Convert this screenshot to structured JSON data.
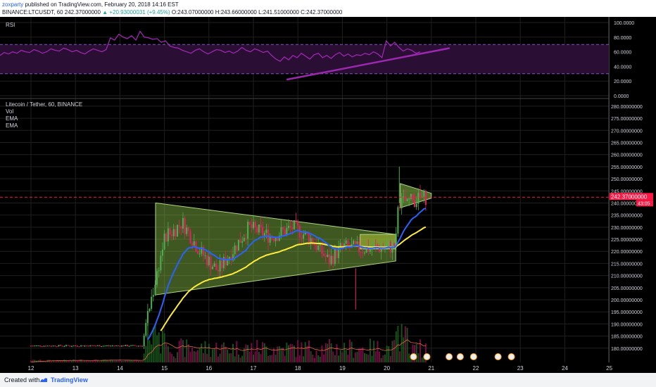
{
  "header": {
    "author": "zoxparty",
    "published_text": "published on TradingView.com, February 20, 2018 14:16 EST",
    "symbol": "BINANCE:LTCUSDT, 60",
    "last": "242.37000000",
    "change": "▲ +20.93000031 (+9.45%)",
    "ohlc": "O:243.07000000 H:243.66000000 L:241.51000000 C:242.37000000"
  },
  "footer": {
    "created_with": "Created with",
    "brand": "TradingView"
  },
  "colors": {
    "background": "#000000",
    "grid": "#1f1f1f",
    "rsi": "#9c27b0",
    "rsi_band": "#2a0e33",
    "ema_fast": "#2962ff",
    "ema_slow": "#ffeb3b",
    "up": "#4caf50",
    "down": "#e91e63",
    "triangle_fill": "#8bc34a",
    "price_line": "#ff1744"
  },
  "chart_data": [
    {
      "type": "line",
      "title": "RSI",
      "ylim": [
        0,
        100
      ],
      "y_ticks": [
        "100.0000",
        "80.0000",
        "60.0000",
        "40.0000",
        "20.0000",
        "0.0000"
      ],
      "bands": [
        30,
        70
      ],
      "series": [
        {
          "values": [
            55,
            59,
            57,
            60,
            58,
            62,
            60,
            59,
            63,
            61,
            58,
            60,
            64,
            62,
            61,
            65,
            63,
            60,
            62,
            59,
            57,
            61,
            64,
            62,
            60,
            63,
            79,
            76,
            84,
            80,
            78,
            82,
            76,
            88,
            80,
            79,
            77,
            78,
            73,
            75,
            68,
            66,
            65,
            62,
            60,
            58,
            62,
            64,
            60,
            57,
            60,
            63,
            62,
            59,
            61,
            58,
            61,
            66,
            62,
            60,
            64,
            62,
            59,
            61,
            55,
            50,
            47,
            53,
            49,
            55,
            52,
            58,
            54,
            50,
            56,
            58,
            52,
            55,
            51,
            56,
            59,
            54,
            57,
            53,
            56,
            55,
            58,
            56,
            60,
            57,
            52,
            75,
            68,
            73,
            66,
            61,
            64,
            62,
            58,
            60
          ]
        }
      ],
      "annotations": [
        {
          "type": "trendline",
          "from": [
            "2018-02-18",
            22
          ],
          "to": [
            "2018-02-21",
            65
          ]
        }
      ]
    },
    {
      "type": "candlestick",
      "title": "Litecoin / Tether, 60, BINANCE",
      "legend": [
        "Vol",
        "EMA",
        "EMA"
      ],
      "ylim": [
        175,
        282
      ],
      "y_ticks": [
        "280.00000000",
        "275.00000000",
        "270.00000000",
        "265.00000000",
        "260.00000000",
        "255.00000000",
        "250.00000000",
        "245.00000000",
        "240.00000000",
        "235.00000000",
        "230.00000000",
        "225.00000000",
        "220.00000000",
        "215.00000000",
        "210.00000000",
        "205.00000000",
        "200.00000000",
        "195.00000000",
        "190.00000000",
        "185.00000000",
        "180.00000000"
      ],
      "x_ticks": [
        "12",
        "13",
        "14",
        "15",
        "16",
        "17",
        "18",
        "19",
        "20",
        "21",
        "22",
        "23",
        "24",
        "25"
      ],
      "last_price_label": "242.37000000",
      "countdown_label": "43:05",
      "triangle": {
        "upper": [
          [
            14.8,
            240
          ],
          [
            20.2,
            227
          ]
        ],
        "lower": [
          [
            14.8,
            202
          ],
          [
            20.2,
            216
          ]
        ]
      },
      "flag": {
        "upper": [
          [
            20.3,
            248
          ],
          [
            21.0,
            244
          ]
        ],
        "lower": [
          [
            20.3,
            238
          ],
          [
            21.0,
            242
          ]
        ]
      },
      "rectangle": {
        "x": [
          19.4,
          20.2
        ],
        "y": [
          221,
          227
        ]
      }
    }
  ]
}
